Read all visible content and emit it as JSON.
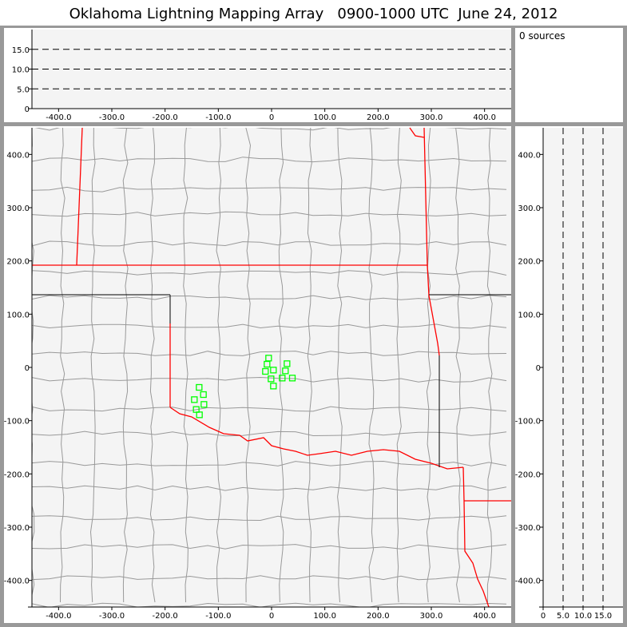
{
  "title": "Oklahoma Lightning Mapping Array   0900-1000 UTC  June 24, 2012",
  "source_count_label": "0 sources",
  "colors": {
    "station": "#00ff00",
    "state_border": "#ff0000",
    "county_border": "#999999",
    "plot_bg": "#f4f4f4",
    "frame": "#999999"
  },
  "top_panel": {
    "xlim": [
      -450,
      450
    ],
    "ylim": [
      0,
      20
    ],
    "x_ticks": [
      "-400.0",
      "-300.0",
      "-200.0",
      "-100.0",
      "0",
      "100.0",
      "200.0",
      "300.0",
      "400.0"
    ],
    "x_tick_values": [
      -400,
      -300,
      -200,
      -100,
      0,
      100,
      200,
      300,
      400
    ],
    "y_ticks": [
      "0",
      "5.0",
      "10.0",
      "15.0"
    ],
    "y_tick_values": [
      0,
      5,
      10,
      15
    ],
    "dashed_lines": [
      5,
      10,
      15
    ]
  },
  "map_panel": {
    "xlim": [
      -450,
      450
    ],
    "ylim": [
      -450,
      450
    ],
    "x_ticks": [
      "-400.0",
      "-300.0",
      "-200.0",
      "-100.0",
      "0",
      "100.0",
      "200.0",
      "300.0",
      "400.0"
    ],
    "x_tick_values": [
      -400,
      -300,
      -200,
      -100,
      0,
      100,
      200,
      300,
      400
    ],
    "y_ticks": [
      "400.0",
      "300.0",
      "200.0",
      "100.0",
      "0",
      "-100.0",
      "-200.0",
      "-300.0",
      "-400.0"
    ],
    "y_tick_values": [
      400,
      300,
      200,
      100,
      0,
      -100,
      -200,
      -300,
      -400
    ],
    "stations_km": [
      [
        -5.5,
        17.5
      ],
      [
        -8.5,
        6
      ],
      [
        29,
        7
      ],
      [
        3.5,
        -5
      ],
      [
        -11.5,
        -7.5
      ],
      [
        26,
        -6.5
      ],
      [
        -1,
        -21.5
      ],
      [
        20,
        -20
      ],
      [
        39,
        -20
      ],
      [
        3.5,
        -35
      ],
      [
        -136,
        -37.5
      ],
      [
        -128,
        -51
      ],
      [
        -145,
        -60.5
      ],
      [
        -127,
        -69.5
      ],
      [
        -141.5,
        -79
      ],
      [
        -135.5,
        -89
      ]
    ]
  },
  "side_panel": {
    "xlim": [
      0,
      20
    ],
    "ylim": [
      -450,
      450
    ],
    "x_ticks": [
      "0",
      "5.0",
      "10.0",
      "15.0"
    ],
    "x_tick_values": [
      0,
      5,
      10,
      15
    ],
    "y_ticks": [
      "400.0",
      "300.0",
      "200.0",
      "100.0",
      "0",
      "-100.0",
      "-200.0",
      "-300.0",
      "-400.0"
    ],
    "y_tick_values": [
      400,
      300,
      200,
      100,
      0,
      -100,
      -200,
      -300,
      -400
    ],
    "dashed_lines": [
      5,
      10,
      15
    ]
  }
}
